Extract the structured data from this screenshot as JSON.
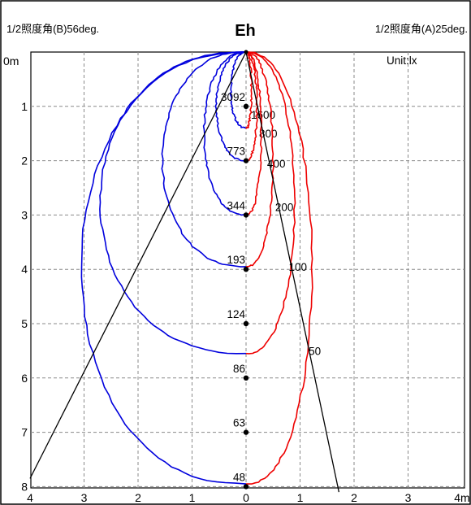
{
  "chart_data": {
    "type": "line",
    "title": "Eh",
    "header_left": "1/2照度角(B)56deg.",
    "header_right": "1/2照度角(A)25deg.",
    "unit_label": "Unit:lx",
    "x_tick_labels": [
      "4",
      "3",
      "2",
      "1",
      "0",
      "1",
      "2",
      "3",
      "4m"
    ],
    "y_tick_labels": [
      "0m",
      "1",
      "2",
      "3",
      "4",
      "5",
      "6",
      "7",
      "8"
    ],
    "xlim": [
      -4,
      4
    ],
    "ylim": [
      0,
      8.1
    ],
    "grid": true,
    "center_points": [
      {
        "label": "3092",
        "depth": 1.0
      },
      {
        "label": "773",
        "depth": 2.0
      },
      {
        "label": "344",
        "depth": 3.0
      },
      {
        "label": "193",
        "depth": 4.0
      },
      {
        "label": "124",
        "depth": 5.0
      },
      {
        "label": "86",
        "depth": 6.0
      },
      {
        "label": "63",
        "depth": 7.0
      },
      {
        "label": "48",
        "depth": 8.0
      }
    ],
    "series": [
      {
        "side": "B",
        "color": "#0000dd",
        "contours": [
          {
            "depth": 1.4,
            "half_width": 0.28
          },
          {
            "depth": 2.0,
            "half_width": 0.55
          },
          {
            "depth": 3.0,
            "half_width": 0.78
          },
          {
            "depth": 3.95,
            "half_width": 1.55
          },
          {
            "depth": 5.55,
            "half_width": 2.7
          },
          {
            "depth": 7.95,
            "half_width": 3.05
          }
        ]
      },
      {
        "side": "A",
        "color": "#ee0000",
        "contours": [
          {
            "label": "1600",
            "value": 1600,
            "depth": 1.4,
            "half_width": 0.1,
            "label_x": 0.15,
            "label_depth": 1.15
          },
          {
            "label": "800",
            "value": 800,
            "depth": 2.0,
            "half_width": 0.2,
            "label_x": 0.3,
            "label_depth": 1.5
          },
          {
            "label": "400",
            "value": 400,
            "depth": 3.0,
            "half_width": 0.28,
            "label_x": 0.45,
            "label_depth": 2.05
          },
          {
            "label": "200",
            "value": 200,
            "depth": 3.95,
            "half_width": 0.5,
            "label_x": 0.6,
            "label_depth": 2.85
          },
          {
            "label": "100",
            "value": 100,
            "depth": 5.55,
            "half_width": 0.9,
            "label_x": 0.85,
            "label_depth": 3.95
          },
          {
            "label": "50",
            "value": 50,
            "depth": 7.95,
            "half_width": 1.22,
            "label_x": 1.22,
            "label_depth": 5.5
          }
        ]
      }
    ],
    "beam_lines": [
      {
        "side": "B",
        "end_x": -4.0,
        "end_depth": 7.85
      },
      {
        "side": "A",
        "end_x": 1.72,
        "end_depth": 8.1
      }
    ]
  }
}
